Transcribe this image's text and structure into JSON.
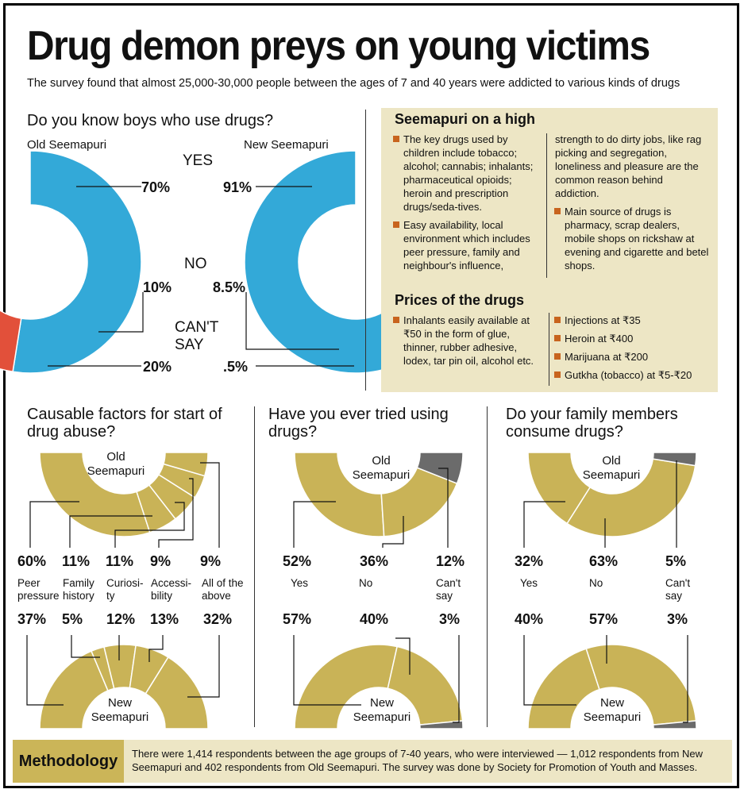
{
  "title": "Drug demon preys on young victims",
  "subtitle": "The survey found that almost 25,000-30,000 people between the ages of 7 and 40 years were addicted to various kinds of drugs",
  "colors": {
    "blue": "#33a9d8",
    "red": "#e2503a",
    "gray": "#6b6b6b",
    "gold": "#c9b357",
    "box": "#ede6c5",
    "bullet": "#c8641e"
  },
  "q1": {
    "question": "Do you know boys who use drugs?",
    "left_name": "Old Seemapuri",
    "right_name": "New Seemapuri",
    "yes": "YES",
    "no": "NO",
    "cant_say": "CAN'T SAY",
    "old": {
      "yes": "70%",
      "no": "10%",
      "cant": "20%"
    },
    "new": {
      "yes": "91%",
      "no": "8.5%",
      "cant": ".5%"
    }
  },
  "box": {
    "heading": "Seemapuri on a high",
    "b1": "The key drugs used by children include tobacco; alcohol; cannabis; inhalants; pharmaceutical opioids; heroin and prescription drugs/seda-tives.",
    "b2": "Easy availability, local environment which includes peer pressure, family and neighbour's influence,",
    "b2_cont": "strength to do dirty jobs, like rag picking and segregation, loneliness and pleasure are the common reason behind addiction.",
    "b3": "Main source of drugs is pharmacy, scrap dealers, mobile shops on rickshaw at evening and cigarette and betel shops.",
    "prices_heading": "Prices of the drugs",
    "p1": "Inhalants easily available at ₹50 in the form of glue, thinner, rubber adhesive, lodex, tar pin oil, alcohol etc.",
    "p2": "Injections at ₹35",
    "p3": "Heroin at ₹400",
    "p4": "Marijuana at ₹200",
    "p5": "Gutkha (tobacco) at ₹5-₹20"
  },
  "f1": {
    "question": "Causable factors for start of drug abuse?",
    "old_name": "Old Seemapuri",
    "new_name": "New Seemapuri",
    "old_pcts": [
      "60%",
      "11%",
      "11%",
      "9%",
      "9%"
    ],
    "labels": [
      "Peer pressure",
      "Family history",
      "Curiosi-ty",
      "Accessi-bility",
      "All of the above"
    ],
    "new_pcts": [
      "37%",
      "5%",
      "12%",
      "13%",
      "32%"
    ]
  },
  "f2": {
    "question": "Have you ever tried using drugs?",
    "old_name": "Old Seemapuri",
    "new_name": "New Seemapuri",
    "old_pcts": [
      "52%",
      "36%",
      "12%"
    ],
    "labels": [
      "Yes",
      "No",
      "Can't say"
    ],
    "new_pcts": [
      "57%",
      "40%",
      "3%"
    ]
  },
  "f3": {
    "question": "Do your family members consume drugs?",
    "old_name": "Old Seemapuri",
    "new_name": "New Seemapuri",
    "old_pcts": [
      "32%",
      "63%",
      "5%"
    ],
    "labels": [
      "Yes",
      "No",
      "Can't say"
    ],
    "new_pcts": [
      "40%",
      "57%",
      "3%"
    ]
  },
  "methodology": {
    "label": "Methodology",
    "text": "There were 1,414 respondents between the age groups of 7-40 years, who were interviewed — 1,012 respondents from New Seemapuri and 402 respondents from Old Seemapuri. The survey was done by Society for Promotion of Youth and Masses."
  },
  "chart_data": [
    {
      "type": "pie",
      "title": "Do you know boys who use drugs? — Old Seemapuri",
      "categories": [
        "Yes",
        "No",
        "Can't say"
      ],
      "values": [
        70,
        10,
        20
      ]
    },
    {
      "type": "pie",
      "title": "Do you know boys who use drugs? — New Seemapuri",
      "categories": [
        "Yes",
        "No",
        "Can't say"
      ],
      "values": [
        91,
        8.5,
        0.5
      ]
    },
    {
      "type": "pie",
      "title": "Causable factors for start of drug abuse? — Old Seemapuri",
      "categories": [
        "Peer pressure",
        "Family history",
        "Curiosity",
        "Accessibility",
        "All of the above"
      ],
      "values": [
        60,
        11,
        11,
        9,
        9
      ]
    },
    {
      "type": "pie",
      "title": "Causable factors for start of drug abuse? — New Seemapuri",
      "categories": [
        "Peer pressure",
        "Family history",
        "Curiosity",
        "Accessibility",
        "All of the above"
      ],
      "values": [
        37,
        5,
        12,
        13,
        32
      ]
    },
    {
      "type": "pie",
      "title": "Have you ever tried using drugs? — Old Seemapuri",
      "categories": [
        "Yes",
        "No",
        "Can't say"
      ],
      "values": [
        52,
        36,
        12
      ]
    },
    {
      "type": "pie",
      "title": "Have you ever tried using drugs? — New Seemapuri",
      "categories": [
        "Yes",
        "No",
        "Can't say"
      ],
      "values": [
        57,
        40,
        3
      ]
    },
    {
      "type": "pie",
      "title": "Do your family members consume drugs? — Old Seemapuri",
      "categories": [
        "Yes",
        "No",
        "Can't say"
      ],
      "values": [
        32,
        63,
        5
      ]
    },
    {
      "type": "pie",
      "title": "Do your family members consume drugs? — New Seemapuri",
      "categories": [
        "Yes",
        "No",
        "Can't say"
      ],
      "values": [
        40,
        57,
        3
      ]
    }
  ]
}
